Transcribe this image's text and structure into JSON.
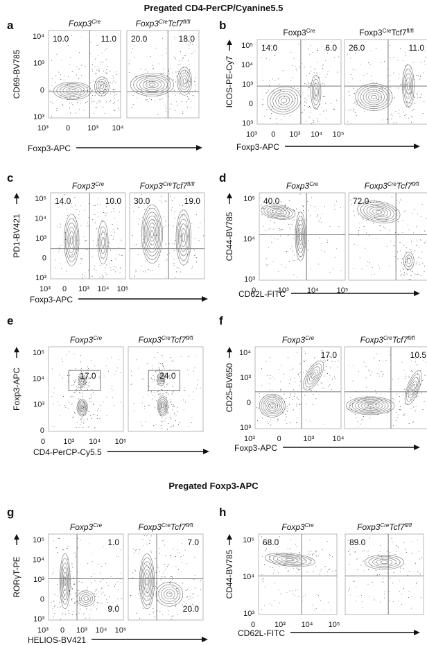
{
  "sections": [
    {
      "title": "Pregated CD4-PerCP/Cyanine5.5"
    },
    {
      "title": "Pregated Foxp3-APC"
    }
  ],
  "colors": {
    "ink": "#111111",
    "contour": "#555555",
    "gate": "#777777"
  },
  "chart_data": [
    {
      "type": "scatter",
      "letter": "a",
      "xlabel": "Foxp3-APC",
      "ylabel": "CD69-BV785",
      "gate": "quadrant",
      "labels_italic": true,
      "xticks": [
        "10³",
        "0",
        "10³",
        "10⁴"
      ],
      "yticks": [
        "10⁴",
        "10³",
        "0",
        "10³"
      ],
      "panels": [
        {
          "sample_base": "Foxp3",
          "sample_sup": "Cre",
          "quadrants": {
            "tl": "10.0",
            "tr": "11.0"
          }
        },
        {
          "sample_base": "Foxp3",
          "sample_sup": "Cre",
          "sample_mid": "Tcf7",
          "sample_sup2": "fl/fl",
          "quadrants": {
            "tl": "20.0",
            "tr": "18.0"
          }
        }
      ]
    },
    {
      "type": "scatter",
      "letter": "b",
      "xlabel": "Foxp3-APC",
      "ylabel": "ICOS-PE-Cy7",
      "gate": "quadrant",
      "labels_italic": false,
      "xticks": [
        "10³",
        "0",
        "10³",
        "10⁴",
        "10⁵"
      ],
      "yticks": [
        "10⁵",
        "10⁴",
        "10³",
        "0",
        "10³"
      ],
      "panels": [
        {
          "sample_base": "Foxp3",
          "sample_sup": "Cre",
          "quadrants": {
            "tl": "14.0",
            "tr": "6.0"
          }
        },
        {
          "sample_base": "Foxp3",
          "sample_sup": "Cre",
          "sample_mid": "Tcf7",
          "sample_sup2": "fl/fl",
          "quadrants": {
            "tl": "26.0",
            "tr": "11.0"
          }
        }
      ]
    },
    {
      "type": "scatter",
      "letter": "c",
      "xlabel": "Foxp3-APC",
      "ylabel": "PD1-BV421",
      "gate": "quadrant",
      "labels_italic": true,
      "xticks": [
        "10³",
        "0",
        "10³",
        "10⁴",
        "10⁵"
      ],
      "yticks": [
        "10⁵",
        "10⁴",
        "10³",
        "0",
        "10³"
      ],
      "panels": [
        {
          "sample_base": "Foxp3",
          "sample_sup": "Cre",
          "quadrants": {
            "tl": "14.0",
            "tr": "10.0"
          }
        },
        {
          "sample_base": "Foxp3",
          "sample_sup": "Cre",
          "sample_mid": "Tcf7",
          "sample_sup2": "fl/fl",
          "quadrants": {
            "tl": "30.0",
            "tr": "19.0"
          }
        }
      ]
    },
    {
      "type": "scatter",
      "letter": "d",
      "xlabel": "CD62L-FITC",
      "ylabel": "CD44-BV785",
      "gate": "quadrant",
      "labels_italic": true,
      "xticks": [
        "0",
        "10³",
        "10⁴",
        "10⁵"
      ],
      "yticks": [
        "10⁵",
        "10⁴",
        "10³"
      ],
      "panels": [
        {
          "sample_base": "Foxp3",
          "sample_sup": "Cre",
          "quadrants": {
            "tl": "40.0"
          }
        },
        {
          "sample_base": "Foxp3",
          "sample_sup": "Cre",
          "sample_mid": "Tcf7",
          "sample_sup2": "fl/fl",
          "quadrants": {
            "tl": "72.0"
          }
        }
      ]
    },
    {
      "type": "scatter",
      "letter": "e",
      "xlabel": "CD4-PerCP-Cy5.5",
      "ylabel": "Foxp3-APC",
      "gate": "box",
      "labels_italic": true,
      "xticks": [
        "0",
        "10³",
        "10⁴",
        "10⁵"
      ],
      "yticks": [
        "10⁵",
        "10⁴",
        "10³",
        "0"
      ],
      "panels": [
        {
          "sample_base": "Foxp3",
          "sample_sup": "Cre",
          "gate_value": "17.0"
        },
        {
          "sample_base": "Foxp3",
          "sample_sup": "Cre",
          "sample_mid": "Tcf7",
          "sample_sup2": "fl/fl",
          "gate_value": "24.0"
        }
      ]
    },
    {
      "type": "scatter",
      "letter": "f",
      "xlabel": "Foxp3-APC",
      "ylabel": "CD25-BV650",
      "gate": "quadrant",
      "labels_italic": true,
      "xticks": [
        "10³",
        "0",
        "10³",
        "10⁴"
      ],
      "yticks": [
        "10⁴",
        "10³",
        "0",
        "10³"
      ],
      "panels": [
        {
          "sample_base": "Foxp3",
          "sample_sup": "Cre",
          "quadrants": {
            "tr": "17.0"
          }
        },
        {
          "sample_base": "Foxp3",
          "sample_sup": "Cre",
          "sample_mid": "Tcf7",
          "sample_sup2": "fl/fl",
          "quadrants": {
            "tr": "10.5"
          }
        }
      ]
    },
    {
      "type": "scatter",
      "letter": "g",
      "xlabel": "HELIOS-BV421",
      "ylabel": "RORγT-PE",
      "gate": "quadrant",
      "labels_italic": true,
      "xticks": [
        "10³",
        "0",
        "10³",
        "10⁴",
        "10⁵"
      ],
      "yticks": [
        "10⁵",
        "10⁴",
        "10³",
        "0",
        "10³"
      ],
      "panels": [
        {
          "sample_base": "Foxp3",
          "sample_sup": "Cre",
          "quadrants": {
            "tr": "1.0",
            "br": "9.0"
          }
        },
        {
          "sample_base": "Foxp3",
          "sample_sup": "Cre",
          "sample_mid": "Tcf7",
          "sample_sup2": "fl/fl",
          "quadrants": {
            "tr": "7.0",
            "br": "20.0"
          }
        }
      ]
    },
    {
      "type": "scatter",
      "letter": "h",
      "xlabel": "CD62L-FITC",
      "ylabel": "CD44-BV785",
      "gate": "quadrant",
      "labels_italic": true,
      "xticks": [
        "0",
        "10³",
        "10⁴",
        "10⁵"
      ],
      "yticks": [
        "10⁵",
        "10⁴",
        "10³"
      ],
      "panels": [
        {
          "sample_base": "Foxp3",
          "sample_sup": "Cre",
          "quadrants": {
            "tl": "68.0"
          }
        },
        {
          "sample_base": "Foxp3",
          "sample_sup": "Cre",
          "sample_mid": "Tcf7",
          "sample_sup2": "fl/fl",
          "quadrants": {
            "tl": "89.0"
          }
        }
      ]
    }
  ]
}
